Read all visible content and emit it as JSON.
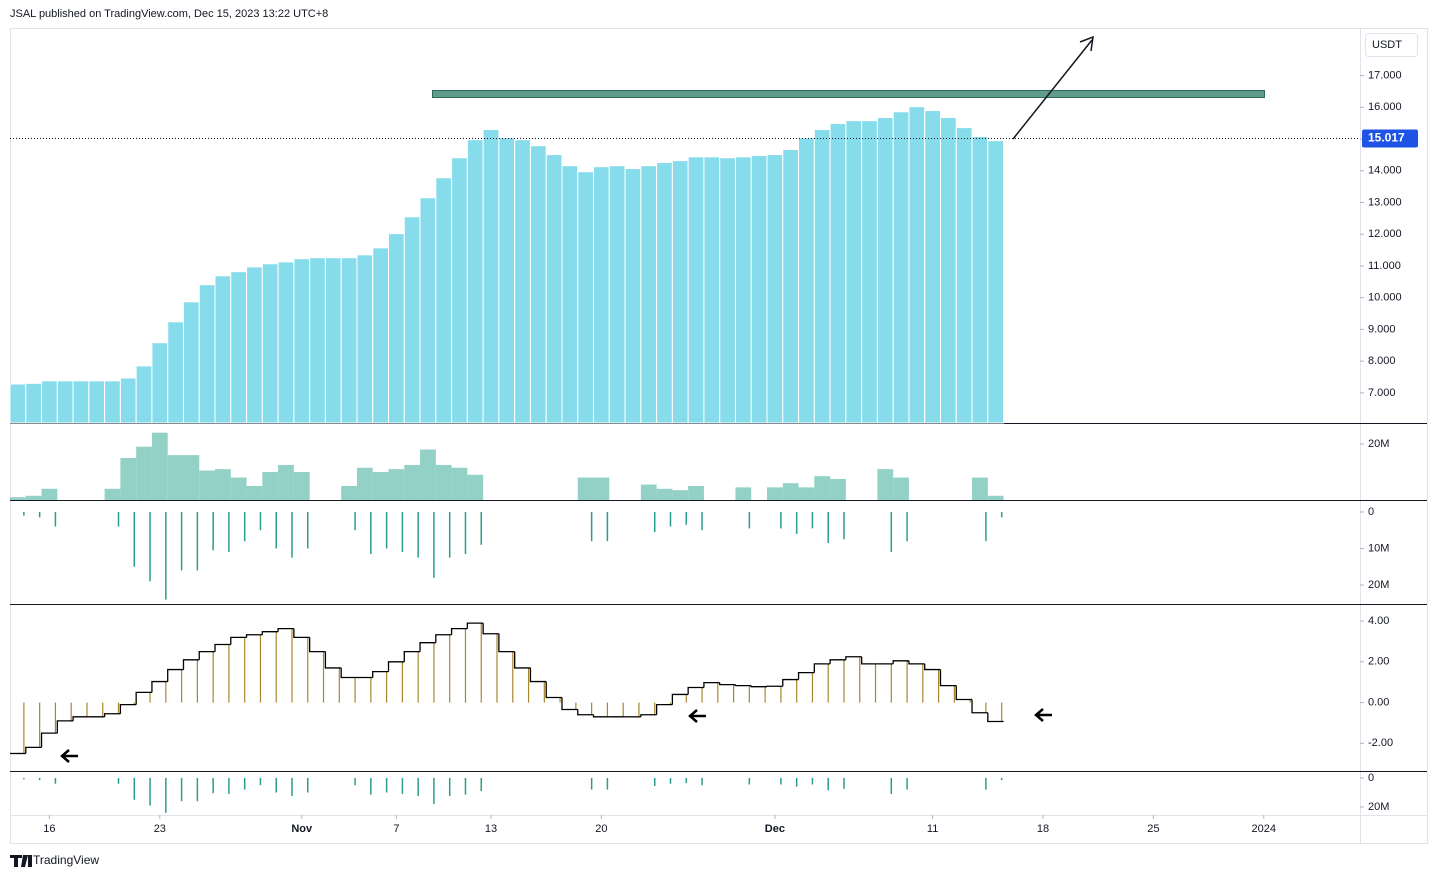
{
  "header": "JSAL published on TradingView.com, Dec 15, 2023 13:22 UTC+8",
  "footer": "TradingView",
  "chart_data": [
    {
      "type": "bar",
      "currency": "USDT",
      "color": "#86dcea",
      "x": [
        14,
        15,
        16,
        17,
        18,
        19,
        20,
        21,
        22,
        23,
        24,
        25,
        26,
        27,
        28,
        29,
        30,
        31,
        32,
        33,
        34,
        35,
        36,
        37,
        38,
        39,
        40,
        41,
        42,
        43,
        44,
        45,
        46,
        47,
        48,
        49,
        50,
        51,
        52,
        53,
        54,
        55,
        56,
        57,
        58,
        59,
        60,
        61,
        62,
        63,
        64,
        65,
        66,
        67,
        68,
        69,
        70,
        71,
        72,
        73,
        74,
        75,
        76
      ],
      "values": [
        7.28,
        7.3,
        7.38,
        7.38,
        7.38,
        7.38,
        7.38,
        7.47,
        7.85,
        8.58,
        9.24,
        9.87,
        10.41,
        10.69,
        10.82,
        10.97,
        11.07,
        11.13,
        11.23,
        11.26,
        11.26,
        11.26,
        11.35,
        11.57,
        12.02,
        12.55,
        13.15,
        13.78,
        14.41,
        14.98,
        15.3,
        15.04,
        14.98,
        14.79,
        14.51,
        14.16,
        13.97,
        14.13,
        14.16,
        14.07,
        14.16,
        14.26,
        14.32,
        14.44,
        14.44,
        14.41,
        14.44,
        14.48,
        14.51,
        14.67,
        15.04,
        15.3,
        15.49,
        15.58,
        15.58,
        15.68,
        15.86,
        16.02,
        15.9,
        15.68,
        15.36,
        15.08,
        14.95
      ],
      "last_price": {
        "value": 15.017,
        "label": "15.017"
      },
      "xlim": [
        13.5,
        99.1
      ],
      "xticks": [
        {
          "value": 16,
          "label": "16"
        },
        {
          "value": 23,
          "label": "23"
        },
        {
          "value": 32,
          "label": "Nov"
        },
        {
          "value": 38,
          "label": "7"
        },
        {
          "value": 44,
          "label": "13"
        },
        {
          "value": 51,
          "label": "20"
        },
        {
          "value": 62,
          "label": "Dec"
        },
        {
          "value": 72,
          "label": "11"
        },
        {
          "value": 79,
          "label": "18"
        },
        {
          "value": 86,
          "label": "25"
        },
        {
          "value": 93,
          "label": "2024"
        }
      ],
      "ylim": [
        6.05,
        18.5
      ],
      "yticks": [
        {
          "value": 7,
          "label": "7.000"
        },
        {
          "value": 8,
          "label": "8.000"
        },
        {
          "value": 9,
          "label": "9.000"
        },
        {
          "value": 10,
          "label": "10.000"
        },
        {
          "value": 11,
          "label": "11.000"
        },
        {
          "value": 12,
          "label": "12.000"
        },
        {
          "value": 13,
          "label": "13.000"
        },
        {
          "value": 14,
          "label": "14.000"
        },
        {
          "value": 15,
          "label": "15.000"
        },
        {
          "value": 16,
          "label": "16.000"
        },
        {
          "value": 17,
          "label": "17.000"
        }
      ]
    },
    {
      "type": "bar",
      "color": "#93d0c6",
      "values": [
        1000000,
        1500000,
        4000000,
        0,
        0,
        0,
        4000000,
        15000000,
        19000000,
        24000000,
        16000000,
        16000000,
        10500000,
        11000000,
        8000000,
        5000000,
        10000000,
        12500000,
        10000000,
        0,
        0,
        5000000,
        11500000,
        10000000,
        11000000,
        12500000,
        18000000,
        12500000,
        11500000,
        9000000,
        0,
        0,
        0,
        0,
        0,
        0,
        8000000,
        8000000,
        0,
        0,
        5500000,
        4000000,
        3500000,
        5000000,
        0,
        0,
        4500000,
        0,
        4500000,
        6000000,
        4500000,
        8500000,
        7500000,
        0,
        0,
        11000000,
        8000000,
        0,
        0,
        0,
        0,
        8000000,
        1500000
      ],
      "ylim": [
        0,
        27100000
      ],
      "yticks": [
        {
          "value": 20000000,
          "label": "20M"
        }
      ]
    },
    {
      "type": "stem",
      "color": "#2a9d8f",
      "ylim": [
        25200000,
        -3000000
      ],
      "yticks": [
        0,
        {
          "value": 10000000,
          "label": "10M"
        },
        {
          "value": 20000000,
          "label": "20M"
        }
      ]
    },
    {
      "type": "step",
      "color": "#000000",
      "stem_color": "#a8862c",
      "values": [
        -2.5,
        -2.2,
        -1.5,
        -0.9,
        -0.7,
        -0.7,
        -0.55,
        -0.1,
        0.5,
        1.03,
        1.62,
        2.1,
        2.5,
        2.85,
        3.2,
        3.33,
        3.48,
        3.63,
        3.2,
        2.5,
        1.7,
        1.23,
        1.23,
        1.52,
        2.0,
        2.5,
        2.94,
        3.33,
        3.63,
        3.9,
        3.38,
        2.5,
        1.7,
        1.03,
        0.25,
        -0.34,
        -0.6,
        -0.7,
        -0.7,
        -0.7,
        -0.6,
        -0.1,
        0.4,
        0.74,
        0.98,
        0.88,
        0.83,
        0.78,
        0.8,
        1.13,
        1.47,
        1.9,
        2.1,
        2.25,
        1.9,
        1.9,
        2.05,
        1.9,
        1.62,
        0.83,
        0.15,
        -0.5,
        -0.93
      ],
      "ylim": [
        -3.36,
        4.79
      ],
      "yticks": [
        {
          "value": 4,
          "label": "4.00"
        },
        {
          "value": 2,
          "label": "2.00"
        },
        {
          "value": 0,
          "label": "0.00"
        },
        {
          "value": -2,
          "label": "-2.00"
        }
      ]
    },
    {
      "type": "stem",
      "color": "#2a9d8f",
      "ylim": [
        25500000,
        -4100000
      ],
      "yticks": [
        0,
        {
          "value": 20000000,
          "label": "20M"
        }
      ]
    }
  ]
}
